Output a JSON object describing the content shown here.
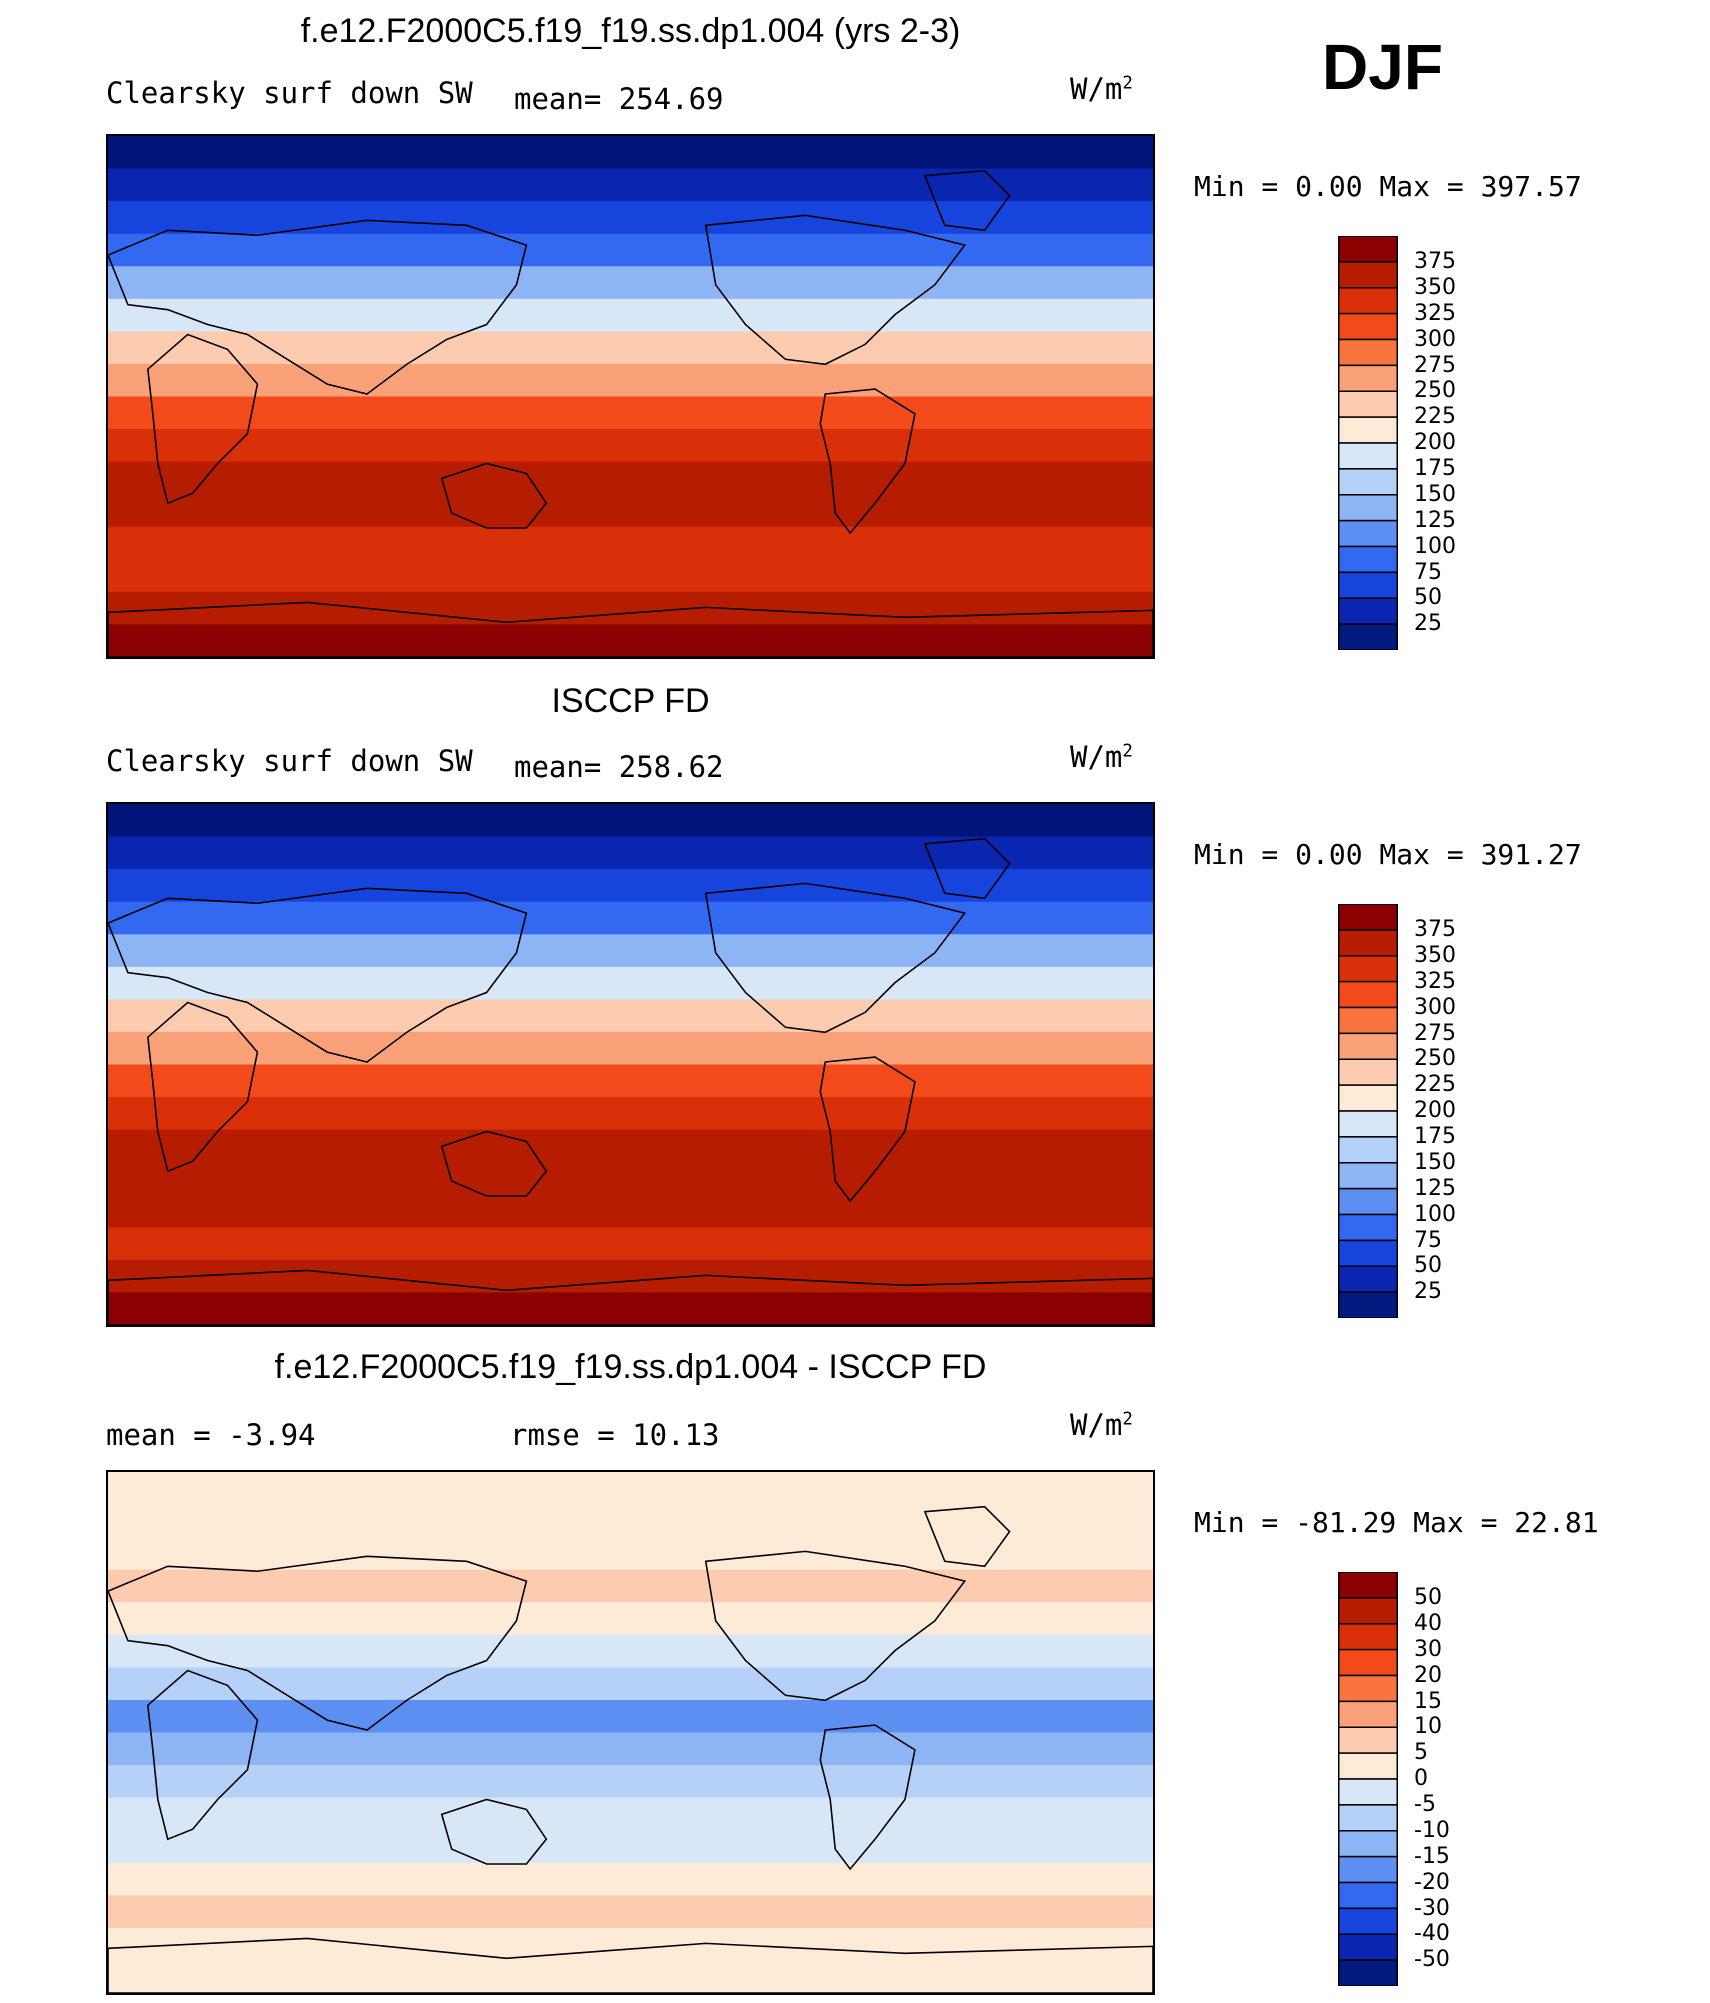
{
  "season": "DJF",
  "panels": [
    {
      "title": "f.e12.F2000C5.f19_f19.ss.dp1.004 (yrs 2-3)",
      "variable": "Clearsky surf down SW",
      "stat1": "mean= 254.69",
      "stat2": "",
      "units": "W/m",
      "units_exp": "2",
      "minmax_label": "Min =     0.00 Max =  397.57",
      "colorbar": {
        "labels": [
          "375",
          "350",
          "325",
          "300",
          "275",
          "250",
          "225",
          "200",
          "175",
          "150",
          "125",
          "100",
          "75",
          "50",
          "25"
        ],
        "colors": [
          "#8b0000",
          "#b51c00",
          "#d93009",
          "#f24a1a",
          "#f9743e",
          "#fba17a",
          "#fdcbb0",
          "#fdebd8",
          "#d8e7f8",
          "#b6d1f7",
          "#8db4f5",
          "#5d8ff2",
          "#3368f0",
          "#1644dc",
          "#0a26b0",
          "#001a80"
        ]
      },
      "field_colors": [
        "#00147a",
        "#0a26b0",
        "#1644dc",
        "#3368f0",
        "#8db4f5",
        "#d8e7f8",
        "#fdcbb0",
        "#fba17a",
        "#f24a1a",
        "#d93009",
        "#b51c00",
        "#b51c00",
        "#d93009",
        "#d93009",
        "#b51c00",
        "#8b0000"
      ]
    },
    {
      "title": "ISCCP FD",
      "variable": "Clearsky surf down SW",
      "stat1": "mean= 258.62",
      "stat2": "",
      "units": "W/m",
      "units_exp": "2",
      "minmax_label": "Min =     0.00 Max =  391.27",
      "colorbar": {
        "labels": [
          "375",
          "350",
          "325",
          "300",
          "275",
          "250",
          "225",
          "200",
          "175",
          "150",
          "125",
          "100",
          "75",
          "50",
          "25"
        ],
        "colors": [
          "#8b0000",
          "#b51c00",
          "#d93009",
          "#f24a1a",
          "#f9743e",
          "#fba17a",
          "#fdcbb0",
          "#fdebd8",
          "#d8e7f8",
          "#b6d1f7",
          "#8db4f5",
          "#5d8ff2",
          "#3368f0",
          "#1644dc",
          "#0a26b0",
          "#001a80"
        ]
      },
      "field_colors": [
        "#00147a",
        "#0a26b0",
        "#1644dc",
        "#3368f0",
        "#8db4f5",
        "#d8e7f8",
        "#fdcbb0",
        "#fba17a",
        "#f24a1a",
        "#d93009",
        "#b51c00",
        "#b51c00",
        "#b51c00",
        "#d93009",
        "#b51c00",
        "#8b0000"
      ]
    },
    {
      "title": "f.e12.F2000C5.f19_f19.ss.dp1.004 - ISCCP FD",
      "variable": "mean =   -3.94",
      "stat1": "rmse =   10.13",
      "stat2": "",
      "units": "W/m",
      "units_exp": "2",
      "minmax_label": "Min = -81.29 Max =   22.81",
      "colorbar": {
        "labels": [
          "50",
          "40",
          "30",
          "20",
          "15",
          "10",
          "5",
          "0",
          "-5",
          "-10",
          "-15",
          "-20",
          "-30",
          "-40",
          "-50"
        ],
        "colors": [
          "#8b0000",
          "#b51c00",
          "#d93009",
          "#f24a1a",
          "#f9743e",
          "#fba17a",
          "#fdcbb0",
          "#fdebd8",
          "#d8e7f8",
          "#b6d1f7",
          "#8db4f5",
          "#5d8ff2",
          "#3368f0",
          "#1644dc",
          "#0a26b0",
          "#001a80"
        ]
      },
      "field_colors": [
        "#fdebd8",
        "#fdebd8",
        "#fdebd8",
        "#fdcbb0",
        "#fdebd8",
        "#d8e7f8",
        "#b6d1f7",
        "#5d8ff2",
        "#8db4f5",
        "#b6d1f7",
        "#d8e7f8",
        "#d8e7f8",
        "#fdebd8",
        "#fdcbb0",
        "#fdebd8",
        "#fdebd8"
      ]
    }
  ]
}
